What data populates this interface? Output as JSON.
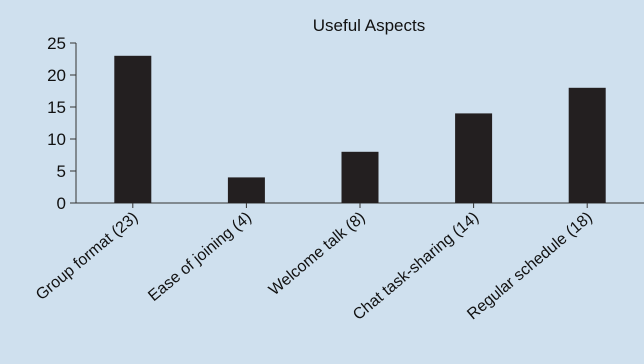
{
  "background": "#cfe0ee",
  "chart_data": {
    "type": "bar",
    "title": "Useful Aspects",
    "xlabel": "",
    "ylabel": "",
    "categories": [
      "Group format (23)",
      "Ease of joining (4)",
      "Welcome talk (8)",
      "Chat task-sharing (14)",
      "Regular schedule (18)"
    ],
    "values": [
      23,
      4,
      8,
      14,
      18
    ],
    "ylim": [
      0,
      25
    ],
    "yticks": [
      0,
      5,
      10,
      15,
      20,
      25
    ],
    "grid": false,
    "legend": "none",
    "bar_color": "#231f20"
  }
}
